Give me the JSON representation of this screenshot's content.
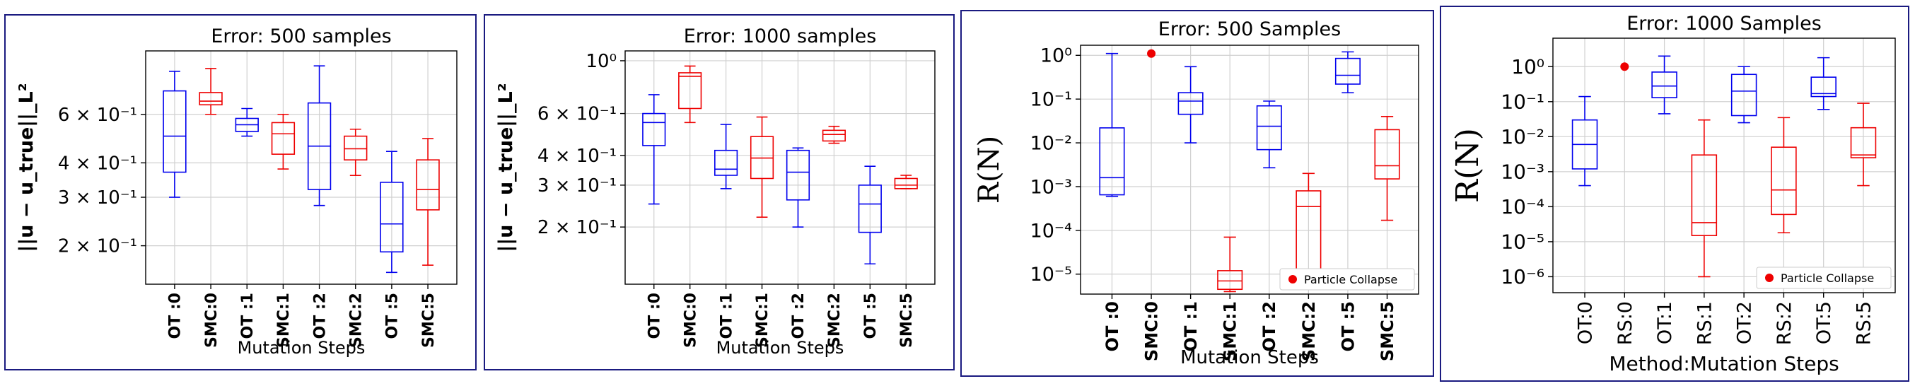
{
  "figure_caption_visible": "",
  "colors": {
    "ot": "#0000ee",
    "smc": "#ee0000",
    "border": "#1a1a80",
    "grid": "#d0d0d0"
  },
  "chart_data": [
    {
      "type": "box",
      "title": "Error: 500 samples",
      "xlabel": "Mutation Steps",
      "ylabel": "||u − u_true||_L²",
      "yscale": "log",
      "ylim": [
        0.145,
        1.02
      ],
      "y_tick_labels": [
        {
          "value": 0.6,
          "label": "6 × 10⁻¹"
        },
        {
          "value": 0.4,
          "label": "4 × 10⁻¹"
        },
        {
          "value": 0.3,
          "label": "3 × 10⁻¹"
        },
        {
          "value": 0.2,
          "label": "2 × 10⁻¹"
        }
      ],
      "grid": true,
      "categories": [
        "OT :0",
        "SMC:0",
        "OT :1",
        "SMC:1",
        "OT :2",
        "SMC:2",
        "OT :5",
        "SMC:5"
      ],
      "category_colors": [
        "ot",
        "smc",
        "ot",
        "smc",
        "ot",
        "smc",
        "ot",
        "smc"
      ],
      "boxes": [
        {
          "whislo": 0.3,
          "q1": 0.37,
          "med": 0.5,
          "q3": 0.73,
          "whishi": 0.86
        },
        {
          "whislo": 0.6,
          "q1": 0.65,
          "med": 0.67,
          "q3": 0.72,
          "whishi": 0.88
        },
        {
          "whislo": 0.5,
          "q1": 0.52,
          "med": 0.55,
          "q3": 0.58,
          "whishi": 0.63
        },
        {
          "whislo": 0.38,
          "q1": 0.43,
          "med": 0.51,
          "q3": 0.56,
          "whishi": 0.6
        },
        {
          "whislo": 0.28,
          "q1": 0.32,
          "med": 0.46,
          "q3": 0.66,
          "whishi": 0.9
        },
        {
          "whislo": 0.36,
          "q1": 0.41,
          "med": 0.45,
          "q3": 0.5,
          "whishi": 0.53
        },
        {
          "whislo": 0.16,
          "q1": 0.19,
          "med": 0.24,
          "q3": 0.34,
          "whishi": 0.44
        },
        {
          "whislo": 0.17,
          "q1": 0.27,
          "med": 0.32,
          "q3": 0.41,
          "whishi": 0.49
        }
      ],
      "outliers": []
    },
    {
      "type": "box",
      "title": "Error: 1000 samples",
      "xlabel": "Mutation Steps",
      "ylabel": "||u − u_true||_L²",
      "yscale": "log",
      "ylim": [
        0.115,
        1.1
      ],
      "y_tick_labels": [
        {
          "value": 1.0,
          "label": "10⁰"
        },
        {
          "value": 0.6,
          "label": "6 × 10⁻¹"
        },
        {
          "value": 0.4,
          "label": "4 × 10⁻¹"
        },
        {
          "value": 0.3,
          "label": "3 × 10⁻¹"
        },
        {
          "value": 0.2,
          "label": "2 × 10⁻¹"
        }
      ],
      "grid": true,
      "categories": [
        "OT :0",
        "SMC:0",
        "OT :1",
        "SMC:1",
        "OT :2",
        "SMC:2",
        "OT :5",
        "SMC:5"
      ],
      "category_colors": [
        "ot",
        "smc",
        "ot",
        "smc",
        "ot",
        "smc",
        "ot",
        "smc"
      ],
      "boxes": [
        {
          "whislo": 0.25,
          "q1": 0.44,
          "med": 0.55,
          "q3": 0.6,
          "whishi": 0.72
        },
        {
          "whislo": 0.55,
          "q1": 0.63,
          "med": 0.86,
          "q3": 0.89,
          "whishi": 0.95
        },
        {
          "whislo": 0.29,
          "q1": 0.33,
          "med": 0.35,
          "q3": 0.42,
          "whishi": 0.54
        },
        {
          "whislo": 0.22,
          "q1": 0.32,
          "med": 0.39,
          "q3": 0.48,
          "whishi": 0.58
        },
        {
          "whislo": 0.2,
          "q1": 0.26,
          "med": 0.34,
          "q3": 0.42,
          "whishi": 0.43
        },
        {
          "whislo": 0.45,
          "q1": 0.46,
          "med": 0.49,
          "q3": 0.51,
          "whishi": 0.53
        },
        {
          "whislo": 0.14,
          "q1": 0.19,
          "med": 0.25,
          "q3": 0.3,
          "whishi": 0.36
        },
        {
          "whislo": 0.29,
          "q1": 0.29,
          "med": 0.3,
          "q3": 0.32,
          "whishi": 0.33
        }
      ],
      "outliers": []
    },
    {
      "type": "box",
      "title": "Error: 500 Samples",
      "xlabel": "Mutation Steps",
      "ylabel": "R(N)",
      "yscale": "log",
      "ylim": [
        3.5e-06,
        1.7
      ],
      "y_tick_labels": [
        {
          "value": 1,
          "label": "10⁰"
        },
        {
          "value": 0.1,
          "label": "10⁻¹"
        },
        {
          "value": 0.01,
          "label": "10⁻²"
        },
        {
          "value": 0.001,
          "label": "10⁻³"
        },
        {
          "value": 0.0001,
          "label": "10⁻⁴"
        },
        {
          "value": 1e-05,
          "label": "10⁻⁵"
        }
      ],
      "grid": true,
      "categories": [
        "OT :0",
        "SMC:0",
        "OT :1",
        "SMC:1",
        "OT :2",
        "SMC:2",
        "OT :5",
        "SMC:5"
      ],
      "category_colors": [
        "ot",
        "smc",
        "ot",
        "smc",
        "ot",
        "smc",
        "ot",
        "smc"
      ],
      "boxes": [
        {
          "whislo": 0.0006,
          "q1": 0.00065,
          "med": 0.0016,
          "q3": 0.022,
          "whishi": 1.1
        },
        null,
        {
          "whislo": 0.01,
          "q1": 0.045,
          "med": 0.09,
          "q3": 0.14,
          "whishi": 0.55
        },
        {
          "whislo": 4e-06,
          "q1": 4.5e-06,
          "med": 7e-06,
          "q3": 1.2e-05,
          "whishi": 7e-05
        },
        {
          "whislo": 0.0027,
          "q1": 0.007,
          "med": 0.024,
          "q3": 0.07,
          "whishi": 0.09
        },
        {
          "whislo": 4.5e-06,
          "q1": 1.2e-05,
          "med": 0.00035,
          "q3": 0.0008,
          "whishi": 0.002
        },
        {
          "whislo": 0.14,
          "q1": 0.22,
          "med": 0.35,
          "q3": 0.85,
          "whishi": 1.2
        },
        {
          "whislo": 0.00017,
          "q1": 0.0015,
          "med": 0.003,
          "q3": 0.02,
          "whishi": 0.04
        }
      ],
      "outliers": [
        {
          "category_index": 1,
          "value": 1.1,
          "label": "Particle Collapse"
        }
      ],
      "legend": {
        "entries": [
          "Particle Collapse"
        ],
        "placement": "lower-right"
      }
    },
    {
      "type": "box",
      "title": "Error: 1000 Samples",
      "xlabel": "Method:Mutation Steps",
      "ylabel": "R(N)",
      "yscale": "log",
      "ylim": [
        3.5e-07,
        6.5
      ],
      "y_tick_labels": [
        {
          "value": 1,
          "label": "10⁰"
        },
        {
          "value": 0.1,
          "label": "10⁻¹"
        },
        {
          "value": 0.01,
          "label": "10⁻²"
        },
        {
          "value": 0.001,
          "label": "10⁻³"
        },
        {
          "value": 0.0001,
          "label": "10⁻⁴"
        },
        {
          "value": 1e-05,
          "label": "10⁻⁵"
        },
        {
          "value": 1e-06,
          "label": "10⁻⁶"
        }
      ],
      "grid": true,
      "categories": [
        "OT:0",
        "RS:0",
        "OT:1",
        "RS:1",
        "OT:2",
        "RS:2",
        "OT:5",
        "RS:5"
      ],
      "category_colors": [
        "ot",
        "smc",
        "ot",
        "smc",
        "ot",
        "smc",
        "ot",
        "smc"
      ],
      "boxes": [
        {
          "whislo": 0.0004,
          "q1": 0.0012,
          "med": 0.006,
          "q3": 0.03,
          "whishi": 0.14
        },
        null,
        {
          "whislo": 0.045,
          "q1": 0.13,
          "med": 0.28,
          "q3": 0.7,
          "whishi": 2.0
        },
        {
          "whislo": 1e-06,
          "q1": 1.5e-05,
          "med": 3.5e-05,
          "q3": 0.003,
          "whishi": 0.03
        },
        {
          "whislo": 0.025,
          "q1": 0.04,
          "med": 0.2,
          "q3": 0.6,
          "whishi": 1.0
        },
        {
          "whislo": 1.8e-05,
          "q1": 6e-05,
          "med": 0.0003,
          "q3": 0.005,
          "whishi": 0.035
        },
        {
          "whislo": 0.06,
          "q1": 0.14,
          "med": 0.17,
          "q3": 0.5,
          "whishi": 1.8
        },
        {
          "whislo": 0.0004,
          "q1": 0.0025,
          "med": 0.003,
          "q3": 0.018,
          "whishi": 0.09
        }
      ],
      "outliers": [
        {
          "category_index": 1,
          "value": 1.0,
          "label": "Particle Collapse"
        }
      ],
      "legend": {
        "entries": [
          "Particle Collapse"
        ],
        "placement": "lower-right"
      }
    }
  ]
}
